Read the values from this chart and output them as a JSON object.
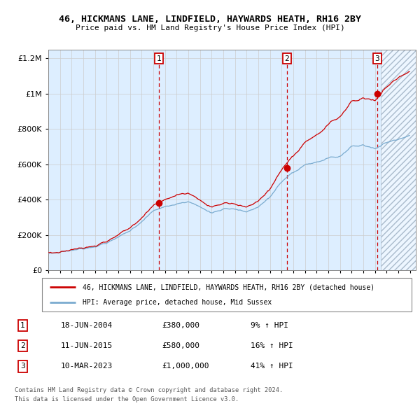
{
  "title1": "46, HICKMANS LANE, LINDFIELD, HAYWARDS HEATH, RH16 2BY",
  "title2": "Price paid vs. HM Land Registry's House Price Index (HPI)",
  "legend_red": "46, HICKMANS LANE, LINDFIELD, HAYWARDS HEATH, RH16 2BY (detached house)",
  "legend_blue": "HPI: Average price, detached house, Mid Sussex",
  "sale1_date": "18-JUN-2004",
  "sale1_price": 380000,
  "sale1_hpi": "9% ↑ HPI",
  "sale2_date": "11-JUN-2015",
  "sale2_price": 580000,
  "sale2_hpi": "16% ↑ HPI",
  "sale3_date": "10-MAR-2023",
  "sale3_price": 1000000,
  "sale3_hpi": "41% ↑ HPI",
  "footer1": "Contains HM Land Registry data © Crown copyright and database right 2024.",
  "footer2": "This data is licensed under the Open Government Licence v3.0.",
  "red_color": "#cc0000",
  "blue_color": "#7aabcf",
  "bg_color": "#ddeeff",
  "hatch_color": "#aabbcc",
  "sale_times": [
    2004.46,
    2015.44,
    2023.19
  ],
  "sale_prices": [
    380000,
    580000,
    1000000
  ],
  "xmin": 1995,
  "xmax": 2026.2,
  "ymin": 0,
  "ymax": 1250000,
  "yticks": [
    0,
    200000,
    400000,
    600000,
    800000,
    1000000,
    1200000
  ],
  "hatch_start": 2023.5
}
